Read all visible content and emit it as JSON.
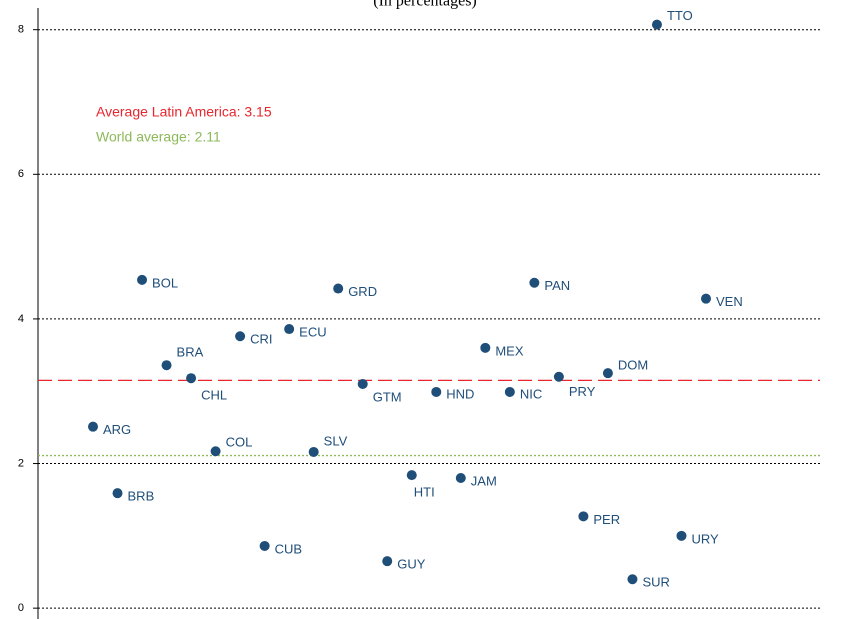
{
  "chart_data": {
    "type": "scatter",
    "subtitle": "(In percentages)",
    "categories": [
      "ARG",
      "BRB",
      "BOL",
      "BRA",
      "CHL",
      "COL",
      "CRI",
      "CUB",
      "ECU",
      "SLV",
      "GRD",
      "GTM",
      "GUY",
      "HTI",
      "HND",
      "JAM",
      "MEX",
      "NIC",
      "PAN",
      "PRY",
      "PER",
      "DOM",
      "SUR",
      "TTO",
      "URY",
      "VEN"
    ],
    "values": [
      2.51,
      1.59,
      4.54,
      3.36,
      3.18,
      2.17,
      3.76,
      0.86,
      3.86,
      2.16,
      4.42,
      3.1,
      0.65,
      1.84,
      2.99,
      1.8,
      3.6,
      2.99,
      4.5,
      3.2,
      1.27,
      3.25,
      0.4,
      8.07,
      1.0,
      4.28
    ],
    "color": "#1f4e79",
    "ylim": [
      -0.15,
      8.3
    ],
    "yticks": [
      0,
      2,
      4,
      6,
      8
    ],
    "grid": true,
    "reference_lines": [
      {
        "label": "Average Latin America: 3.15",
        "value": 3.15,
        "color": "#e8262d",
        "style": "dashed"
      },
      {
        "label": "World average: 2.11",
        "value": 2.11,
        "color": "#8db95a",
        "style": "dotted"
      }
    ]
  }
}
